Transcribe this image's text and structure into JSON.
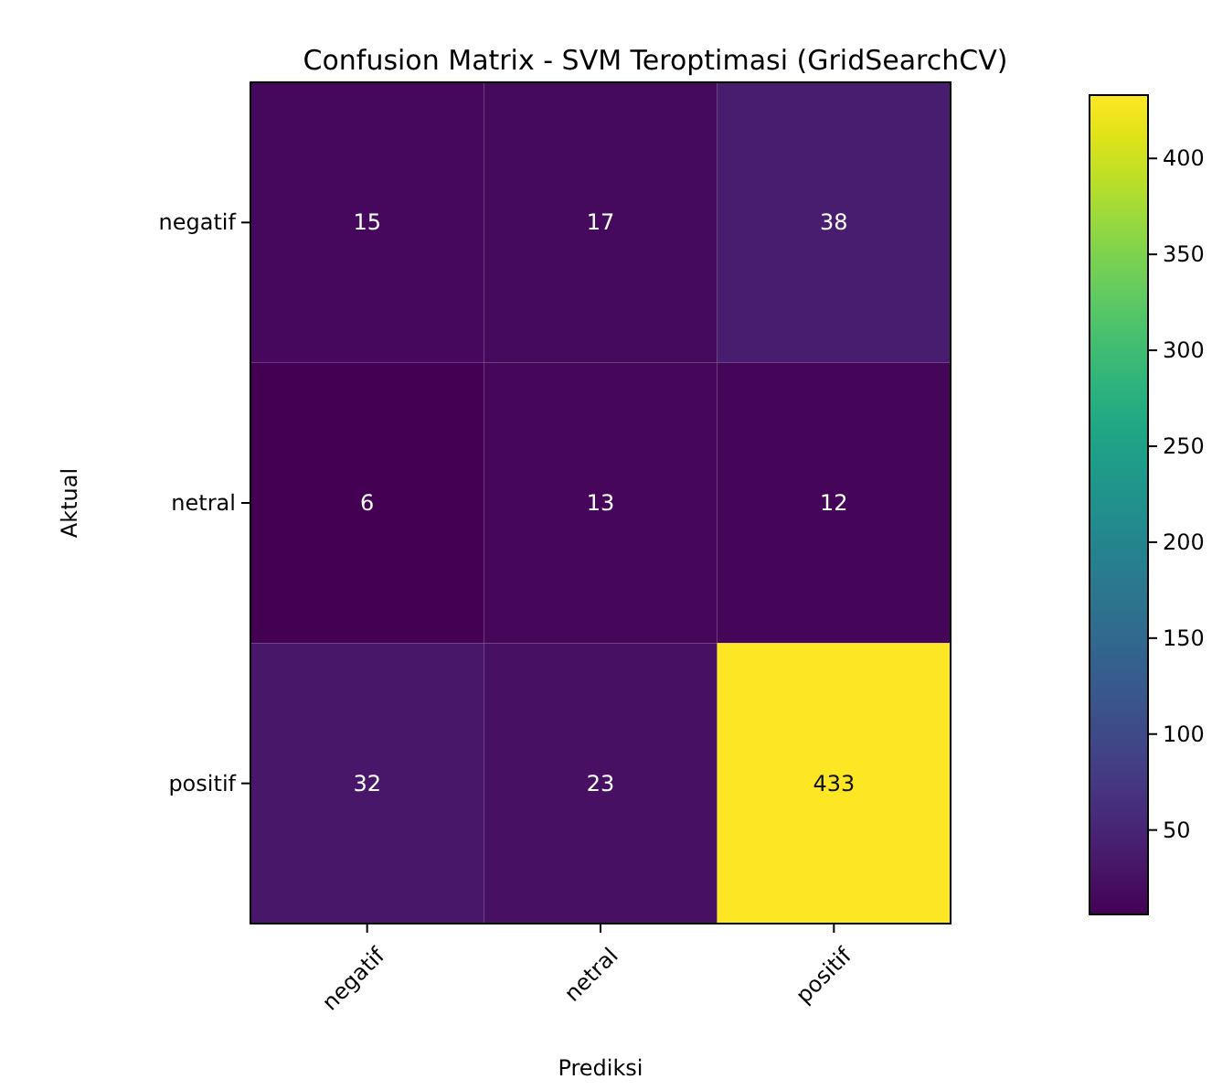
{
  "chart_data": {
    "type": "heatmap",
    "title": "Confusion Matrix - SVM Teroptimasi (GridSearchCV)",
    "xlabel": "Prediksi",
    "ylabel": "Aktual",
    "categories": [
      "negatif",
      "netral",
      "positif"
    ],
    "y_categories": [
      "negatif",
      "netral",
      "positif"
    ],
    "cells": [
      [
        15,
        17,
        38
      ],
      [
        6,
        13,
        12
      ],
      [
        32,
        23,
        433
      ]
    ],
    "clim": [
      6,
      433
    ],
    "cticks": [
      50,
      100,
      150,
      200,
      250,
      300,
      350,
      400
    ],
    "data_labels": true
  }
}
